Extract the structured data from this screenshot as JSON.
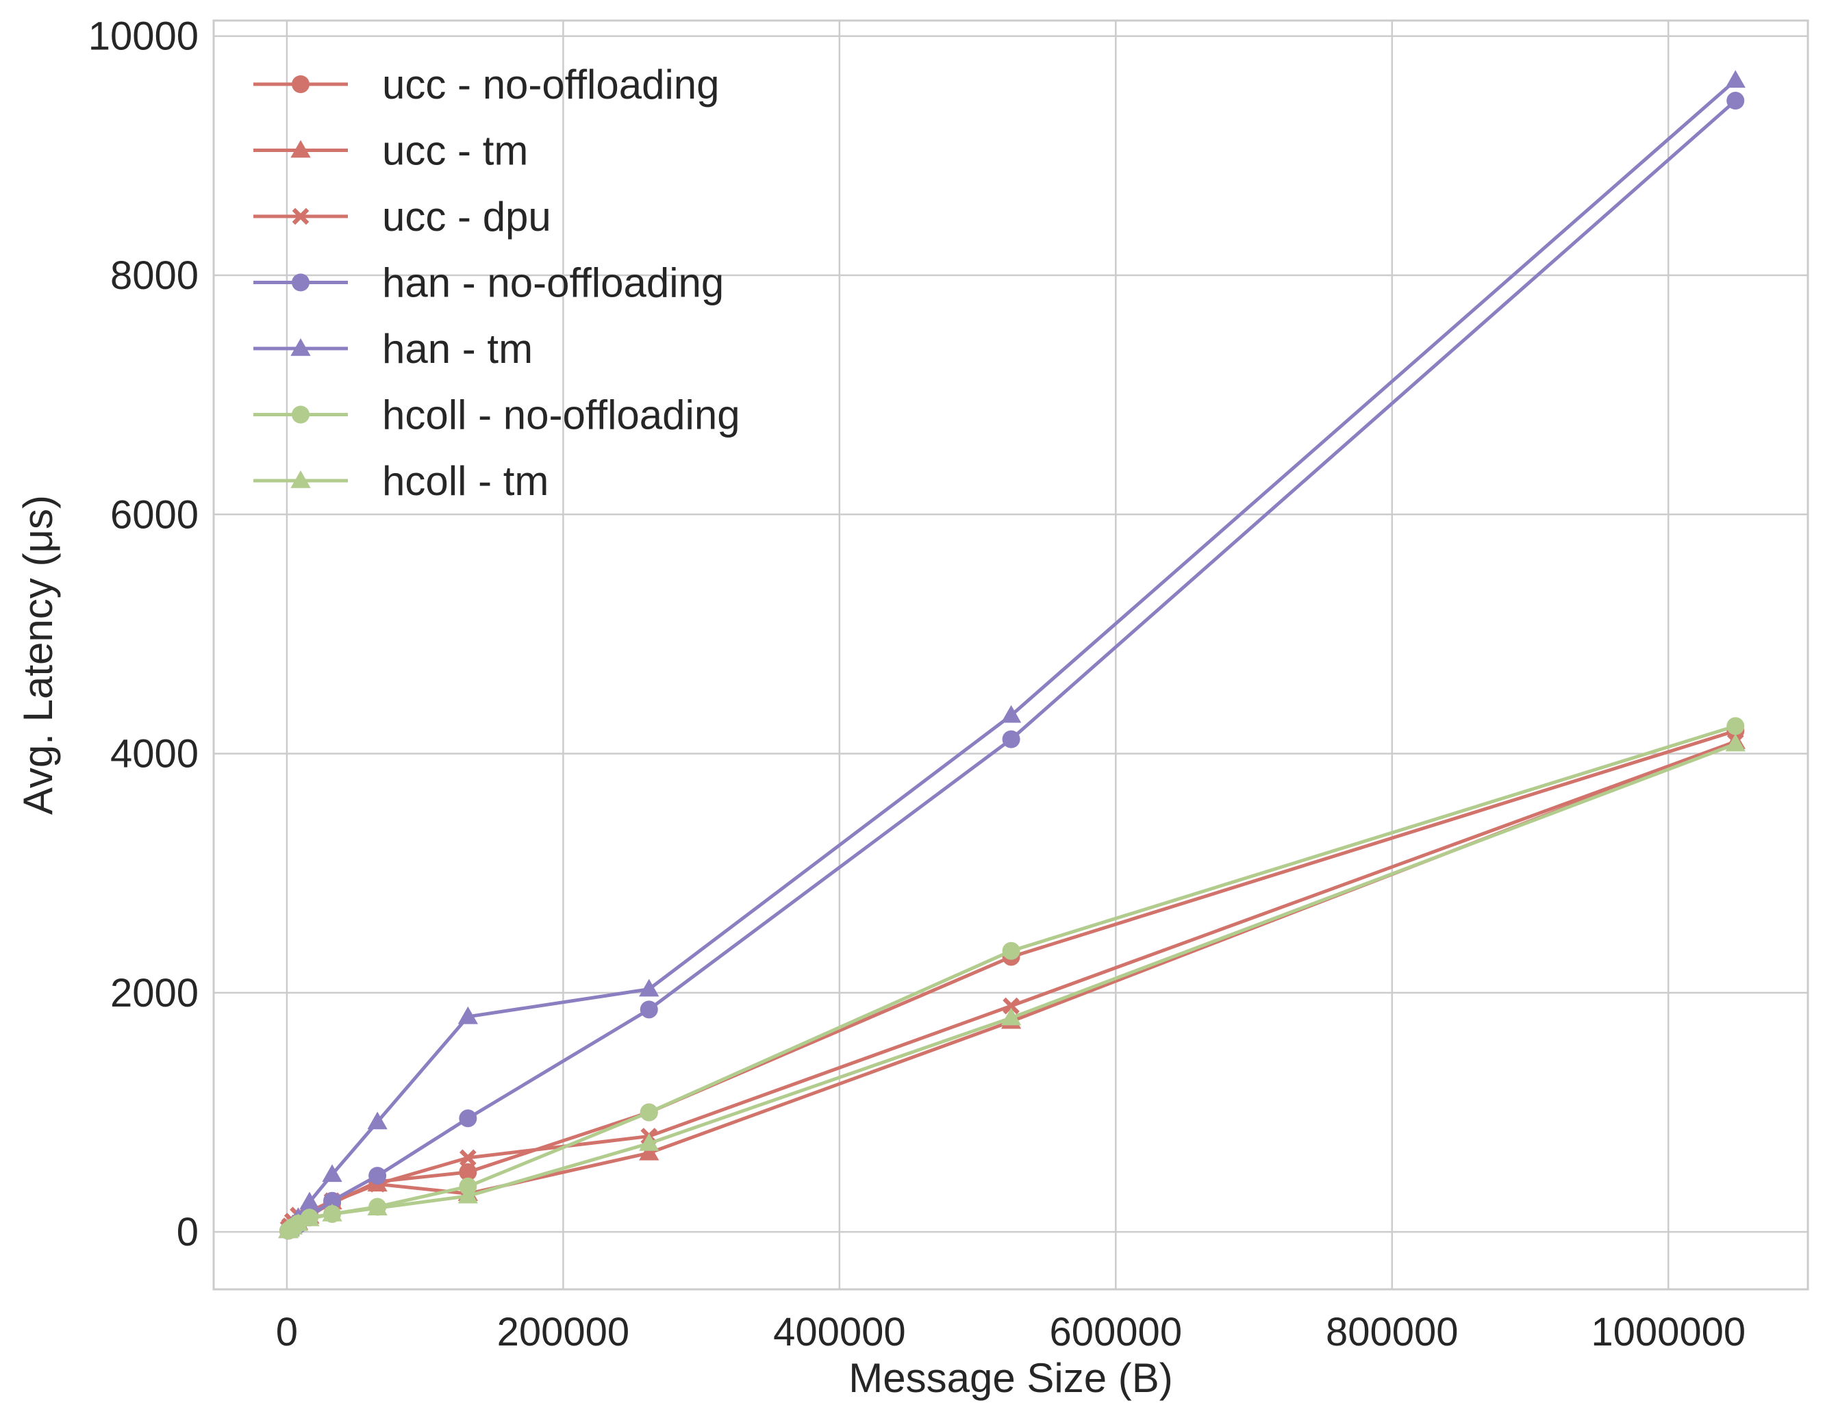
{
  "chart_data": {
    "type": "line",
    "title": "",
    "xlabel": "Message Size (B)",
    "ylabel": "Avg. Latency (μs)",
    "xlim": [
      -53000,
      1101000
    ],
    "ylim": [
      -480,
      10130
    ],
    "xticks": [
      0,
      200000,
      400000,
      600000,
      800000,
      1000000
    ],
    "xtick_labels": [
      "0",
      "200000",
      "400000",
      "600000",
      "800000",
      "1000000"
    ],
    "yticks": [
      0,
      2000,
      4000,
      6000,
      8000,
      10000
    ],
    "ytick_labels": [
      "0",
      "2000",
      "4000",
      "6000",
      "8000",
      "10000"
    ],
    "grid": true,
    "legend_position": "upper-left",
    "x": [
      1024,
      2048,
      4096,
      8192,
      16384,
      32768,
      65536,
      131072,
      262144,
      524288,
      1048576
    ],
    "series": [
      {
        "name": "ucc - no-offloading",
        "color": "#d1736b",
        "marker": "circle",
        "values": [
          10,
          20,
          40,
          80,
          140,
          240,
          420,
          500,
          1000,
          2300,
          4190
        ]
      },
      {
        "name": "ucc - tm",
        "color": "#d1736b",
        "marker": "triangle",
        "values": [
          10,
          20,
          40,
          80,
          130,
          250,
          400,
          320,
          660,
          1760,
          4100
        ]
      },
      {
        "name": "ucc - dpu",
        "color": "#d1736b",
        "marker": "x",
        "values": [
          30,
          50,
          90,
          140,
          170,
          260,
          400,
          620,
          800,
          1890,
          4100
        ]
      },
      {
        "name": "han - no-offloading",
        "color": "#8b7ec1",
        "marker": "circle",
        "values": [
          10,
          20,
          30,
          60,
          130,
          260,
          470,
          950,
          1860,
          4120,
          9460
        ]
      },
      {
        "name": "han - tm",
        "color": "#8b7ec1",
        "marker": "triangle",
        "values": [
          10,
          30,
          60,
          120,
          250,
          480,
          920,
          1800,
          2030,
          4320,
          9630
        ]
      },
      {
        "name": "hcoll - no-offloading",
        "color": "#b2cc8e",
        "marker": "circle",
        "values": [
          10,
          20,
          40,
          70,
          120,
          150,
          210,
          380,
          1000,
          2350,
          4230
        ]
      },
      {
        "name": "hcoll - tm",
        "color": "#b2cc8e",
        "marker": "triangle",
        "values": [
          10,
          20,
          40,
          70,
          110,
          150,
          200,
          300,
          740,
          1790,
          4080
        ]
      }
    ]
  }
}
